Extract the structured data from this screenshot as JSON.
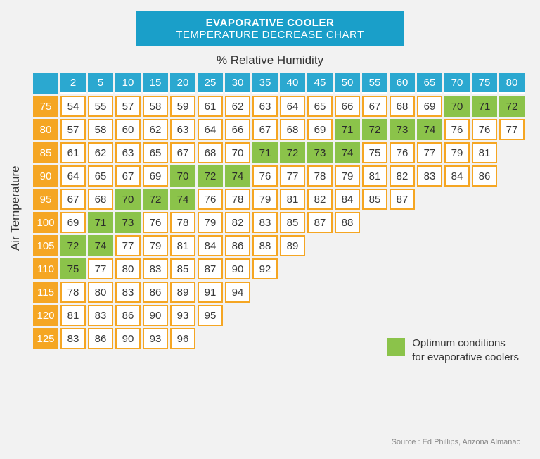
{
  "title": {
    "line1": "EVAPORATIVE COOLER",
    "line2": "TEMPERATURE DECREASE CHART"
  },
  "xlabel": "% Relative Humidity",
  "ylabel": "Air Temperature",
  "legend": {
    "line1": "Optimum conditions",
    "line2": "for evaporative coolers"
  },
  "source": "Source : Ed Phillips, Arizona Almanac",
  "colors": {
    "banner_bg": "#1a9fc9",
    "header_bg": "#2ba8d0",
    "row_header_bg": "#f5a623",
    "cell_border": "#f5a623",
    "cell_bg": "#ffffff",
    "optimum_bg": "#8bc34a",
    "page_bg": "#f2f2f2",
    "text": "#333333"
  },
  "humidity_cols": [
    2,
    5,
    10,
    15,
    20,
    25,
    30,
    35,
    40,
    45,
    50,
    55,
    60,
    65,
    70,
    75,
    80
  ],
  "temp_rows": [
    75,
    80,
    85,
    90,
    95,
    100,
    105,
    110,
    115,
    120,
    125
  ],
  "cells": [
    [
      {
        "v": 54
      },
      {
        "v": 55
      },
      {
        "v": 57
      },
      {
        "v": 58
      },
      {
        "v": 59
      },
      {
        "v": 61
      },
      {
        "v": 62
      },
      {
        "v": 63
      },
      {
        "v": 64
      },
      {
        "v": 65
      },
      {
        "v": 66
      },
      {
        "v": 67
      },
      {
        "v": 68
      },
      {
        "v": 69
      },
      {
        "v": 70,
        "o": 1
      },
      {
        "v": 71,
        "o": 1
      },
      {
        "v": 72,
        "o": 1
      }
    ],
    [
      {
        "v": 57
      },
      {
        "v": 58
      },
      {
        "v": 60
      },
      {
        "v": 62
      },
      {
        "v": 63
      },
      {
        "v": 64
      },
      {
        "v": 66
      },
      {
        "v": 67
      },
      {
        "v": 68
      },
      {
        "v": 69
      },
      {
        "v": 71,
        "o": 1
      },
      {
        "v": 72,
        "o": 1
      },
      {
        "v": 73,
        "o": 1
      },
      {
        "v": 74,
        "o": 1
      },
      {
        "v": 76
      },
      {
        "v": 76
      },
      {
        "v": 77
      }
    ],
    [
      {
        "v": 61
      },
      {
        "v": 62
      },
      {
        "v": 63
      },
      {
        "v": 65
      },
      {
        "v": 67
      },
      {
        "v": 68
      },
      {
        "v": 70
      },
      {
        "v": 71,
        "o": 1
      },
      {
        "v": 72,
        "o": 1
      },
      {
        "v": 73,
        "o": 1
      },
      {
        "v": 74,
        "o": 1
      },
      {
        "v": 75
      },
      {
        "v": 76
      },
      {
        "v": 77
      },
      {
        "v": 79
      },
      {
        "v": 81
      },
      null
    ],
    [
      {
        "v": 64
      },
      {
        "v": 65
      },
      {
        "v": 67
      },
      {
        "v": 69
      },
      {
        "v": 70,
        "o": 1
      },
      {
        "v": 72,
        "o": 1
      },
      {
        "v": 74,
        "o": 1
      },
      {
        "v": 76
      },
      {
        "v": 77
      },
      {
        "v": 78
      },
      {
        "v": 79
      },
      {
        "v": 81
      },
      {
        "v": 82
      },
      {
        "v": 83
      },
      {
        "v": 84
      },
      {
        "v": 86
      },
      null
    ],
    [
      {
        "v": 67
      },
      {
        "v": 68
      },
      {
        "v": 70,
        "o": 1
      },
      {
        "v": 72,
        "o": 1
      },
      {
        "v": 74,
        "o": 1
      },
      {
        "v": 76
      },
      {
        "v": 78
      },
      {
        "v": 79
      },
      {
        "v": 81
      },
      {
        "v": 82
      },
      {
        "v": 84
      },
      {
        "v": 85
      },
      {
        "v": 87
      },
      null,
      null,
      null,
      null
    ],
    [
      {
        "v": 69
      },
      {
        "v": 71,
        "o": 1
      },
      {
        "v": 73,
        "o": 1
      },
      {
        "v": 76
      },
      {
        "v": 78
      },
      {
        "v": 79
      },
      {
        "v": 82
      },
      {
        "v": 83
      },
      {
        "v": 85
      },
      {
        "v": 87
      },
      {
        "v": 88
      },
      null,
      null,
      null,
      null,
      null,
      null
    ],
    [
      {
        "v": 72,
        "o": 1
      },
      {
        "v": 74,
        "o": 1
      },
      {
        "v": 77
      },
      {
        "v": 79
      },
      {
        "v": 81
      },
      {
        "v": 84
      },
      {
        "v": 86
      },
      {
        "v": 88
      },
      {
        "v": 89
      },
      null,
      null,
      null,
      null,
      null,
      null,
      null,
      null
    ],
    [
      {
        "v": 75,
        "o": 1
      },
      {
        "v": 77
      },
      {
        "v": 80
      },
      {
        "v": 83
      },
      {
        "v": 85
      },
      {
        "v": 87
      },
      {
        "v": 90
      },
      {
        "v": 92
      },
      null,
      null,
      null,
      null,
      null,
      null,
      null,
      null,
      null
    ],
    [
      {
        "v": 78
      },
      {
        "v": 80
      },
      {
        "v": 83
      },
      {
        "v": 86
      },
      {
        "v": 89
      },
      {
        "v": 91
      },
      {
        "v": 94
      },
      null,
      null,
      null,
      null,
      null,
      null,
      null,
      null,
      null,
      null
    ],
    [
      {
        "v": 81
      },
      {
        "v": 83
      },
      {
        "v": 86
      },
      {
        "v": 90
      },
      {
        "v": 93
      },
      {
        "v": 95
      },
      null,
      null,
      null,
      null,
      null,
      null,
      null,
      null,
      null,
      null,
      null
    ],
    [
      {
        "v": 83
      },
      {
        "v": 86
      },
      {
        "v": 90
      },
      {
        "v": 93
      },
      {
        "v": 96
      },
      null,
      null,
      null,
      null,
      null,
      null,
      null,
      null,
      null,
      null,
      null,
      null
    ]
  ]
}
